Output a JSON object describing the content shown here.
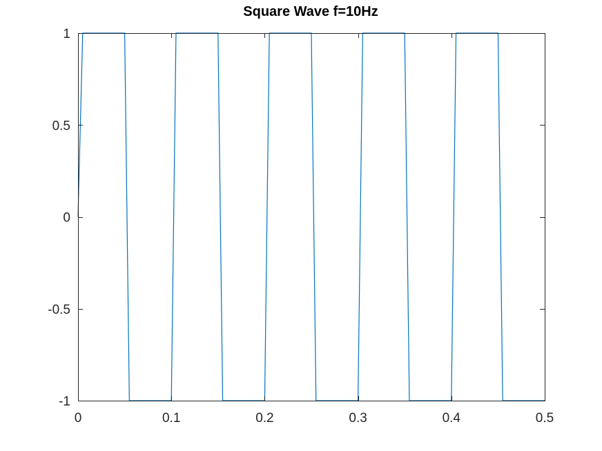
{
  "chart_data": {
    "type": "line",
    "title": "Square Wave f=10Hz",
    "xlabel": "",
    "ylabel": "",
    "xlim": [
      0,
      0.5
    ],
    "ylim": [
      -1,
      1
    ],
    "xticks": [
      0,
      0.1,
      0.2,
      0.3,
      0.4,
      0.5
    ],
    "xtick_labels": [
      "0",
      "0.1",
      "0.2",
      "0.3",
      "0.4",
      "0.5"
    ],
    "yticks": [
      -1,
      -0.5,
      0,
      0.5,
      1
    ],
    "ytick_labels": [
      "-1",
      "-0.5",
      "0",
      "0.5",
      "1"
    ],
    "grid": false,
    "legend": "none",
    "series": [
      {
        "color": "#0072BD",
        "x": [
          0,
          0.005,
          0.05,
          0.055,
          0.1,
          0.105,
          0.15,
          0.155,
          0.2,
          0.205,
          0.25,
          0.255,
          0.3,
          0.305,
          0.35,
          0.355,
          0.4,
          0.405,
          0.45,
          0.455,
          0.5
        ],
        "y": [
          0,
          1,
          1,
          -1,
          -1,
          1,
          1,
          -1,
          -1,
          1,
          1,
          -1,
          -1,
          1,
          1,
          -1,
          -1,
          1,
          1,
          -1,
          -1
        ]
      }
    ]
  }
}
